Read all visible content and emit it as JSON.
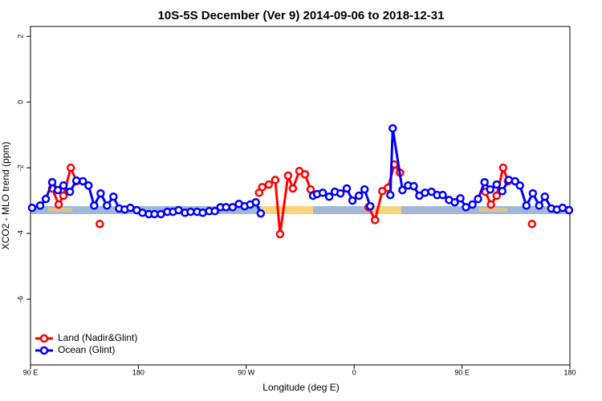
{
  "chart_data": {
    "type": "line",
    "title": "10S-5S December (Ver 9)   2014-09-06 to 2018-12-31",
    "xlabel": "Longitude (deg E)",
    "ylabel": "XCO2 - MLO trend (ppm)",
    "xlim": [
      90,
      540
    ],
    "ylim": [
      -8,
      2.3
    ],
    "xticks": [
      {
        "value": 90,
        "label": "90 E"
      },
      180,
      {
        "value": 270,
        "label": "90 W"
      },
      {
        "value": 360,
        "label": "0"
      },
      {
        "value": 450,
        "label": "90 E"
      },
      {
        "value": 540,
        "label": "180"
      }
    ],
    "yticks": [
      -6,
      -4,
      -2,
      0,
      2
    ],
    "legend": "bottom-left",
    "series": [
      {
        "name": "Land (Nadir&Glint)",
        "color": "#ff0000",
        "x": [
          108.1,
          113.5,
          117.5,
          123.6,
          128.3,
          null,
          147.8,
          null,
          280.7,
          283.4,
          288.8,
          294.2,
          298.2,
          304.9,
          308.9,
          314.3,
          319.0,
          323.7,
          null,
          372.1,
          377.4,
          383.5,
          388.2,
          393.6,
          398.3,
          null,
          469.5,
          474.1,
          478.9,
          484.3,
          488.3,
          null,
          508.4
        ],
        "values": [
          -2.63,
          -3.12,
          -2.85,
          -2.0,
          -2.41,
          null,
          -3.71,
          null,
          -2.76,
          -2.59,
          -2.51,
          -2.37,
          -4.02,
          -2.24,
          -2.63,
          -2.1,
          -2.2,
          -2.66,
          null,
          -3.2,
          -3.59,
          -2.71,
          -2.61,
          -1.9,
          -2.15,
          null,
          -2.73,
          -3.12,
          -2.85,
          -2.0,
          -2.41,
          null,
          -3.71
        ]
      },
      {
        "name": "Ocean (Glint)",
        "color": "#0000ff",
        "x": [
          91.3,
          98.1,
          102.8,
          108.1,
          112.8,
          117.5,
          122.9,
          128.3,
          133.7,
          138.4,
          143.1,
          148.5,
          153.8,
          159.2,
          163.9,
          168.6,
          173.3,
          178.7,
          183.4,
          188.7,
          193.4,
          198.8,
          204.2,
          208.9,
          213.6,
          218.9,
          223.6,
          229.0,
          233.7,
          239.1,
          243.8,
          248.5,
          253.2,
          258.6,
          263.9,
          268.6,
          273.3,
          278.0,
          282.1,
          null,
          325.7,
          329.1,
          333.8,
          339.2,
          343.9,
          348.6,
          353.9,
          358.6,
          364.0,
          368.7,
          373.4,
          null,
          390.2,
          392.2,
          400.3,
          405.0,
          409.7,
          414.4,
          419.1,
          424.5,
          429.2,
          433.9,
          439.2,
          443.9,
          448.6,
          453.3,
          458.7,
          463.4,
          468.8,
          473.5,
          478.9,
          483.6,
          489.0,
          494.3,
          498.3,
          503.7,
          509.1,
          514.4,
          519.1,
          524.5,
          529.2,
          533.9,
          539.3
        ],
        "values": [
          -3.22,
          -3.15,
          -2.95,
          -2.44,
          -2.68,
          -2.54,
          -2.73,
          -2.39,
          -2.41,
          -2.54,
          -3.15,
          -2.78,
          -3.15,
          -2.88,
          -3.24,
          -3.27,
          -3.22,
          -3.29,
          -3.37,
          -3.41,
          -3.41,
          -3.41,
          -3.34,
          -3.34,
          -3.29,
          -3.37,
          -3.34,
          -3.34,
          -3.37,
          -3.32,
          -3.32,
          -3.2,
          -3.2,
          -3.2,
          -3.1,
          -3.17,
          -3.12,
          -3.05,
          -3.39,
          null,
          -2.85,
          -2.8,
          -2.76,
          -2.88,
          -2.73,
          -2.78,
          -2.63,
          -3.0,
          -2.85,
          -2.66,
          -3.17,
          null,
          -2.83,
          -0.8,
          -2.68,
          -2.54,
          -2.56,
          -2.85,
          -2.76,
          -2.73,
          -2.83,
          -2.83,
          -2.98,
          -3.05,
          -2.93,
          -3.2,
          -3.12,
          -2.95,
          -2.44,
          -2.66,
          -2.51,
          -2.71,
          -2.37,
          -2.41,
          -2.54,
          -3.15,
          -2.78,
          -3.15,
          -2.88,
          -3.24,
          -3.27,
          -3.22,
          -3.29
        ]
      }
    ]
  }
}
